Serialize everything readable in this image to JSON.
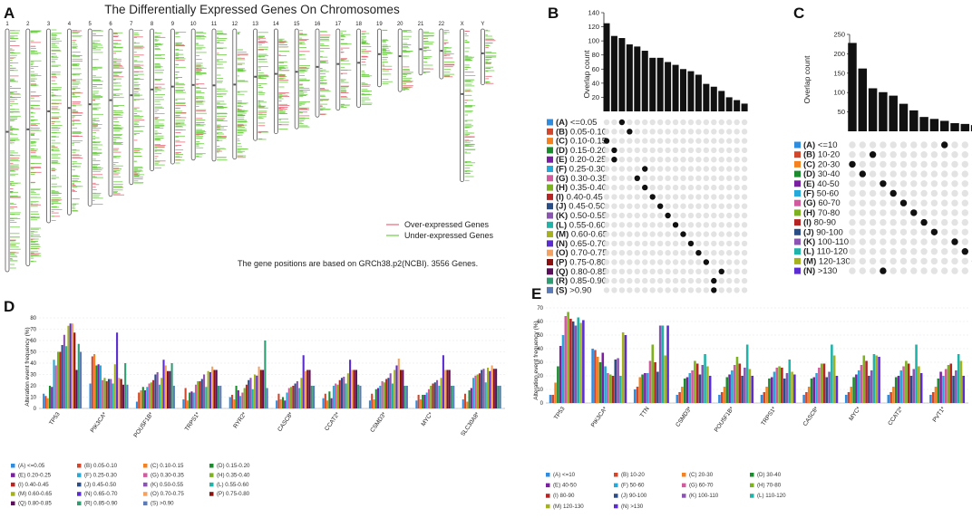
{
  "panel_labels": [
    "A",
    "B",
    "C",
    "D",
    "E"
  ],
  "colors": {
    "over": "#e8687a",
    "under": "#6dcf45",
    "bar": "#111111",
    "dot_off": "#e3e3e3",
    "dot_on": "#111111",
    "groups": [
      "#2f8de0",
      "#d2462b",
      "#f58220",
      "#1a8c2e",
      "#7a1fa2",
      "#25a9d9",
      "#d25b9f",
      "#7bb21e",
      "#b52523",
      "#2b4d86",
      "#8c54b2",
      "#1fb3a9",
      "#a5b21e",
      "#5a2cd1",
      "#f4a261",
      "#8b1010",
      "#5b0f5a",
      "#2f9c72",
      "#5a7bb8"
    ]
  },
  "chart_data": [
    {
      "id": "A",
      "type": "heatmap",
      "title": "The Differentially Expressed Genes On Chromosomes",
      "chromosomes": [
        {
          "name": "1",
          "length": 248
        },
        {
          "name": "2",
          "length": 242
        },
        {
          "name": "3",
          "length": 198
        },
        {
          "name": "4",
          "length": 190
        },
        {
          "name": "5",
          "length": 181
        },
        {
          "name": "6",
          "length": 171
        },
        {
          "name": "7",
          "length": 159
        },
        {
          "name": "8",
          "length": 145
        },
        {
          "name": "9",
          "length": 138
        },
        {
          "name": "10",
          "length": 134
        },
        {
          "name": "11",
          "length": 135
        },
        {
          "name": "12",
          "length": 133
        },
        {
          "name": "13",
          "length": 114
        },
        {
          "name": "14",
          "length": 107
        },
        {
          "name": "15",
          "length": 102
        },
        {
          "name": "16",
          "length": 90
        },
        {
          "name": "17",
          "length": 83
        },
        {
          "name": "18",
          "length": 80
        },
        {
          "name": "19",
          "length": 59
        },
        {
          "name": "20",
          "length": 64
        },
        {
          "name": "21",
          "length": 47
        },
        {
          "name": "22",
          "length": 51
        },
        {
          "name": "X",
          "length": 156
        },
        {
          "name": "Y",
          "length": 57
        }
      ],
      "legend": [
        "Over-expressed Genes",
        "Under-expressed Genes"
      ],
      "note": "The gene positions are based on GRCh38.p2(NCBI). 3556 Genes."
    },
    {
      "id": "B",
      "type": "bar",
      "ylabel": "Overlap count",
      "ylim": [
        0,
        140
      ],
      "yticks": [
        20,
        40,
        60,
        80,
        100,
        120,
        140
      ],
      "values": [
        125,
        107,
        104,
        95,
        92,
        86,
        76,
        76,
        70,
        66,
        60,
        57,
        52,
        39,
        35,
        29,
        20,
        16,
        11
      ],
      "set_prefixes": [
        "(A)",
        "(B)",
        "(C)",
        "(D)",
        "(E)",
        "(F)",
        "(G)",
        "(H)",
        "(I)",
        "(J)",
        "(K)",
        "(L)",
        "(M)",
        "(N)",
        "(O)",
        "(P)",
        "(Q)",
        "(R)",
        "(S)"
      ],
      "set_ranges": [
        "<=0.05",
        "0.05-0.10",
        "0.10-0.15",
        "0.15-0.20",
        "0.20-0.25",
        "0.25-0.30",
        "0.30-0.35",
        "0.35-0.40",
        "0.40-0.45",
        "0.45-0.50",
        "0.50-0.55",
        "0.55-0.60",
        "0.60-0.65",
        "0.65-0.70",
        "0.70-0.75",
        "0.75-0.80",
        "0.80-0.85",
        "0.85-0.90",
        ">0.90"
      ],
      "dot_columns": [
        2,
        3,
        0,
        1,
        1,
        5,
        4,
        5,
        6,
        7,
        8,
        9,
        10,
        11,
        12,
        13,
        15,
        14,
        14
      ]
    },
    {
      "id": "C",
      "type": "bar",
      "ylabel": "Overlap count",
      "ylim": [
        0,
        250
      ],
      "yticks": [
        50,
        100,
        150,
        200,
        250
      ],
      "values": [
        228,
        162,
        111,
        101,
        92,
        71,
        54,
        37,
        32,
        27,
        21,
        19,
        16,
        14
      ],
      "set_prefixes": [
        "(A)",
        "(B)",
        "(C)",
        "(D)",
        "(E)",
        "(F)",
        "(G)",
        "(H)",
        "(I)",
        "(J)",
        "(K)",
        "(L)",
        "(M)",
        "(N)"
      ],
      "set_ranges": [
        "<=10",
        "10-20",
        "20-30",
        "30-40",
        "40-50",
        "50-60",
        "60-70",
        "70-80",
        "80-90",
        "90-100",
        "100-110",
        "110-120",
        "120-130",
        ">130"
      ],
      "dot_columns": [
        9,
        2,
        0,
        1,
        3,
        4,
        5,
        6,
        7,
        8,
        10,
        11,
        12,
        3
      ]
    },
    {
      "id": "D",
      "type": "bar",
      "ylabel": "Alteration event frequency (%)",
      "ylim": [
        0,
        80
      ],
      "yticks": [
        0,
        10,
        20,
        30,
        40,
        50,
        60,
        70,
        80
      ],
      "categories": [
        "TP53",
        "PIK3CA*",
        "POU5F1B*",
        "TRPS1*",
        "RYR2*",
        "CASC8*",
        "CCAT2*",
        "CSMD3*",
        "MYC*",
        "SLC30A8*"
      ],
      "series": [
        {
          "name": "(A) <=0.05",
          "values": [
            13,
            22,
            6,
            8,
            10,
            7,
            9,
            7,
            7,
            8
          ]
        },
        {
          "name": "(B) 0.05-0.10",
          "values": [
            11,
            46,
            14,
            18,
            12,
            13,
            13,
            13,
            12,
            13
          ]
        },
        {
          "name": "(C) 0.10-0.15",
          "values": [
            9,
            48,
            16,
            7,
            8,
            8,
            7,
            8,
            8,
            6
          ]
        },
        {
          "name": "(D) 0.15-0.20",
          "values": [
            20,
            38,
            19,
            14,
            20,
            10,
            15,
            17,
            12,
            16
          ]
        },
        {
          "name": "(E) 0.20-0.25",
          "values": [
            19,
            39,
            16,
            15,
            16,
            7,
            9,
            18,
            12,
            18
          ]
        },
        {
          "name": "(F) 0.25-0.30",
          "values": [
            43,
            38,
            19,
            14,
            11,
            14,
            20,
            20,
            14,
            27
          ]
        },
        {
          "name": "(G) 0.30-0.35",
          "values": [
            38,
            25,
            22,
            21,
            14,
            18,
            22,
            24,
            17,
            29
          ]
        },
        {
          "name": "(H) 0.35-0.40",
          "values": [
            50,
            27,
            23,
            24,
            18,
            19,
            21,
            23,
            20,
            30
          ]
        },
        {
          "name": "(I) 0.40-0.45",
          "values": [
            50,
            24,
            25,
            24,
            21,
            20,
            25,
            26,
            22,
            31
          ]
        },
        {
          "name": "(J) 0.45-0.50",
          "values": [
            56,
            26,
            30,
            26,
            25,
            22,
            27,
            27,
            23,
            34
          ]
        },
        {
          "name": "(K) 0.50-0.55",
          "values": [
            65,
            26,
            32,
            30,
            27,
            24,
            28,
            31,
            25,
            35
          ]
        },
        {
          "name": "(L) 0.55-0.60",
          "values": [
            55,
            22,
            21,
            19,
            17,
            18,
            22,
            22,
            20,
            23
          ]
        },
        {
          "name": "(M) 0.60-0.65",
          "values": [
            73,
            39,
            27,
            33,
            30,
            27,
            31,
            34,
            27,
            36
          ]
        },
        {
          "name": "(N) 0.65-0.70",
          "values": [
            75,
            67,
            43,
            32,
            29,
            47,
            43,
            38,
            47,
            33
          ]
        },
        {
          "name": "(O) 0.70-0.75",
          "values": [
            75,
            27,
            38,
            37,
            37,
            33,
            34,
            44,
            34,
            38
          ]
        },
        {
          "name": "(P) 0.75-0.80",
          "values": [
            67,
            26,
            33,
            34,
            34,
            34,
            34,
            34,
            34,
            35
          ]
        },
        {
          "name": "(Q) 0.80-0.85",
          "values": [
            34,
            21,
            33,
            34,
            34,
            34,
            34,
            34,
            34,
            35
          ]
        },
        {
          "name": "(R) 0.85-0.90",
          "values": [
            57,
            40,
            40,
            20,
            60,
            20,
            21,
            20,
            20,
            20
          ]
        },
        {
          "name": "(S) >0.90",
          "values": [
            50,
            21,
            20,
            20,
            18,
            20,
            20,
            20,
            20,
            20
          ]
        }
      ]
    },
    {
      "id": "E",
      "type": "bar",
      "ylabel": "Alteration event frequency (%)",
      "ylim": [
        0,
        70
      ],
      "yticks": [
        0,
        10,
        20,
        30,
        40,
        50,
        60,
        70
      ],
      "categories": [
        "TP53",
        "PIK3CA*",
        "TTN",
        "CSMD3*",
        "POU5F1B*",
        "TRPS1*",
        "CASC8*",
        "MYC*",
        "CCAT2*",
        "PVT1*"
      ],
      "series": [
        {
          "name": "(A) <=10",
          "values": [
            6,
            40,
            10,
            6,
            6,
            6,
            6,
            6,
            6,
            6
          ]
        },
        {
          "name": "(B) 10-20",
          "values": [
            6,
            39,
            12,
            8,
            8,
            8,
            8,
            8,
            8,
            8
          ]
        },
        {
          "name": "(C) 20-30",
          "values": [
            15,
            34,
            19,
            12,
            12,
            12,
            12,
            12,
            12,
            12
          ]
        },
        {
          "name": "(D) 30-40",
          "values": [
            27,
            30,
            21,
            18,
            19,
            18,
            18,
            19,
            19,
            18
          ]
        },
        {
          "name": "(E) 40-50",
          "values": [
            42,
            37,
            22,
            19,
            21,
            19,
            19,
            21,
            20,
            23
          ]
        },
        {
          "name": "(F) 50-60",
          "values": [
            50,
            27,
            22,
            22,
            24,
            23,
            22,
            24,
            24,
            20
          ]
        },
        {
          "name": "(G) 60-70",
          "values": [
            64,
            22,
            31,
            24,
            28,
            26,
            26,
            28,
            27,
            25
          ]
        },
        {
          "name": "(H) 70-80",
          "values": [
            67,
            21,
            43,
            31,
            34,
            27,
            29,
            35,
            31,
            28
          ]
        },
        {
          "name": "(I) 80-90",
          "values": [
            62,
            20,
            30,
            29,
            29,
            26,
            29,
            31,
            29,
            29
          ]
        },
        {
          "name": "(J) 90-100",
          "values": [
            60,
            32,
            23,
            21,
            20,
            18,
            19,
            20,
            20,
            20
          ]
        },
        {
          "name": "(K) 100-110",
          "values": [
            57,
            33,
            57,
            28,
            26,
            22,
            23,
            24,
            25,
            24
          ]
        },
        {
          "name": "(L) 110-120",
          "values": [
            63,
            20,
            57,
            36,
            43,
            32,
            43,
            36,
            43,
            36
          ]
        },
        {
          "name": "(M) 120-130",
          "values": [
            59,
            52,
            35,
            27,
            25,
            23,
            35,
            35,
            27,
            31
          ]
        },
        {
          "name": "(N) >130",
          "values": [
            61,
            50,
            57,
            20,
            20,
            21,
            20,
            34,
            22,
            20
          ]
        }
      ]
    }
  ]
}
